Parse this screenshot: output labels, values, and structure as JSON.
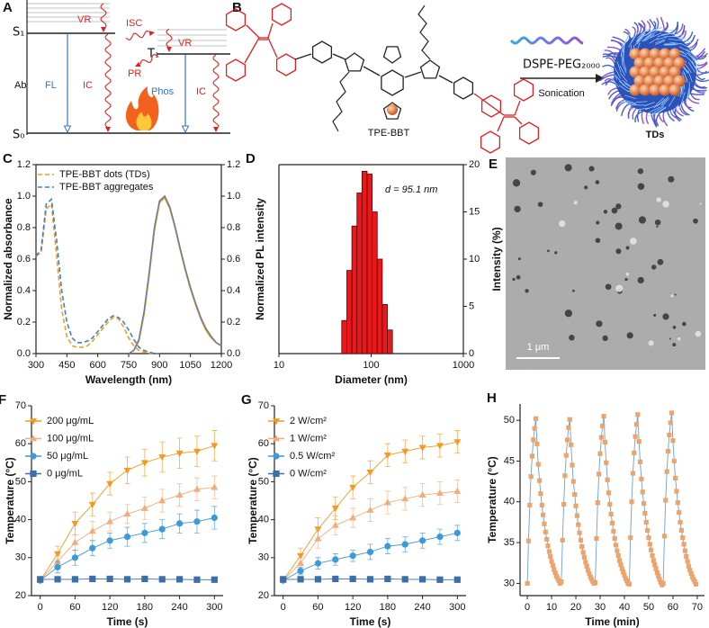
{
  "diagram_a": {
    "panel": "A",
    "s1": "S₁",
    "t1": "T₁",
    "s0": "S₀",
    "vr1": "VR",
    "isc": "ISC",
    "vr2": "VR",
    "pr": "PR",
    "ab": "Ab",
    "fl": "FL",
    "ic1": "IC",
    "phos": "Phos",
    "ic2": "IC"
  },
  "scheme_b": {
    "panel": "B",
    "molecule": "TPE-BBT",
    "reagent": "DSPE-PEG₂₀₀₀",
    "step": "Sonication",
    "product": "TDs"
  },
  "image_e": {
    "panel": "E",
    "scale_bar": "1 μm"
  },
  "chart_data": [
    {
      "panel": "C",
      "type": "line",
      "xlabel": "Wavelength (nm)",
      "ylabel": "Normalized absorbance",
      "y2label": "Normalized PL intensity",
      "x": [
        300,
        325,
        350,
        375,
        400,
        425,
        450,
        475,
        500,
        525,
        550,
        575,
        600,
        625,
        650,
        675,
        700,
        725,
        750,
        775,
        800,
        825,
        850,
        875,
        900,
        925,
        950,
        975,
        1000,
        1025,
        1050,
        1075,
        1100,
        1125,
        1150,
        1175,
        1200
      ],
      "series": [
        {
          "name": "TPE-BBT dots (TDs)",
          "color": "#f39a22",
          "linestyle": "dashed",
          "values": [
            0.62,
            0.64,
            0.92,
            0.95,
            0.62,
            0.28,
            0.11,
            0.05,
            0.04,
            0.04,
            0.05,
            0.08,
            0.12,
            0.16,
            0.2,
            0.23,
            0.22,
            0.17,
            0.1,
            0.05,
            0.02,
            0.01,
            0,
            0,
            0,
            null,
            null,
            null,
            null,
            null,
            null,
            null,
            null,
            null,
            null,
            null,
            null
          ]
        },
        {
          "name": "TPE-BBT aggregates",
          "color": "#3f80c4",
          "linestyle": "dashed",
          "values": [
            0.62,
            0.66,
            0.95,
            0.98,
            0.72,
            0.4,
            0.2,
            0.1,
            0.07,
            0.07,
            0.08,
            0.1,
            0.14,
            0.18,
            0.22,
            0.24,
            0.23,
            0.2,
            0.15,
            0.09,
            0.04,
            0.02,
            0.01,
            0,
            0,
            null,
            null,
            null,
            null,
            null,
            null,
            null,
            null,
            null,
            null,
            null,
            null
          ]
        },
        {
          "color": "#f39a22",
          "linestyle": "solid",
          "axis": "y2",
          "values": [
            null,
            null,
            null,
            null,
            null,
            null,
            null,
            null,
            null,
            null,
            null,
            null,
            null,
            null,
            null,
            null,
            null,
            null,
            0,
            0.02,
            0.08,
            0.25,
            0.5,
            0.78,
            0.96,
            0.99,
            0.92,
            0.8,
            0.66,
            0.53,
            0.41,
            0.31,
            0.22,
            0.15,
            0.1,
            0.07,
            0.05
          ]
        },
        {
          "color": "#6f7f8f",
          "linestyle": "solid",
          "axis": "y2",
          "values": [
            null,
            null,
            null,
            null,
            null,
            null,
            null,
            null,
            null,
            null,
            null,
            null,
            null,
            null,
            null,
            null,
            null,
            null,
            0,
            0.02,
            0.09,
            0.27,
            0.52,
            0.8,
            0.97,
            1.0,
            0.93,
            0.81,
            0.67,
            0.54,
            0.42,
            0.32,
            0.23,
            0.16,
            0.11,
            0.07,
            0.05
          ]
        }
      ],
      "xlim": [
        300,
        1200
      ],
      "xticks": [
        300,
        450,
        600,
        750,
        900,
        1050,
        1200
      ],
      "ylim": [
        0,
        1.2
      ],
      "yticks": [
        {
          "value": 0,
          "label": "0.0"
        },
        0.2,
        0.4,
        0.6,
        0.8,
        {
          "value": 1,
          "label": "1.0"
        },
        1.2
      ],
      "y2lim": [
        0,
        1.2
      ],
      "y2ticks": [
        {
          "value": 0,
          "label": "0.0"
        },
        0.2,
        0.4,
        0.6,
        0.8,
        {
          "value": 1,
          "label": "1.0"
        },
        1.2
      ],
      "frame": "box",
      "legend": "upper left"
    },
    {
      "panel": "D",
      "type": "histogram",
      "xlabel": "Diameter (nm)",
      "y2label": "Intensity (%)",
      "annotation": "d = 95.1 nm",
      "bins": [
        48,
        54.5,
        61.8,
        70.2,
        79.6,
        90.4,
        102.6,
        116.4,
        132.1,
        149.9,
        170.2
      ],
      "values": [
        3.5,
        8.8,
        13.5,
        17.0,
        19.3,
        19.0,
        15.0,
        10.0,
        5.2,
        2.5
      ],
      "color": "#e8191c",
      "xlim": [
        10,
        1000
      ],
      "xticks": [
        10,
        100,
        1000
      ],
      "xlog": true,
      "y2lim": [
        0,
        20
      ],
      "y2ticks": [
        0,
        5,
        10,
        15,
        20
      ],
      "frame": "box"
    },
    {
      "panel": "F",
      "type": "line",
      "xlabel": "Time (s)",
      "ylabel": "Temperature (°C)",
      "x": [
        0,
        30,
        60,
        90,
        120,
        150,
        180,
        210,
        240,
        270,
        300
      ],
      "series": [
        {
          "name": "200 μg/mL",
          "color": "#f39a22",
          "marker": "triangle-down",
          "values": [
            24,
            31,
            39,
            44,
            49.5,
            53,
            55,
            56.5,
            57.5,
            58,
            59.5
          ],
          "errors": [
            0.5,
            2,
            3,
            3,
            3,
            3.5,
            3.5,
            4,
            4,
            4,
            4
          ]
        },
        {
          "name": "100 μg/mL",
          "color": "#f0ad7d",
          "marker": "triangle-up",
          "values": [
            24,
            29,
            34,
            37,
            39.5,
            41.5,
            43,
            45,
            46.5,
            48,
            48.5
          ],
          "errors": [
            0.5,
            1.5,
            2,
            2.5,
            2.5,
            2.5,
            3,
            3,
            3,
            3,
            3
          ]
        },
        {
          "name": "50 μg/mL",
          "color": "#3d9ad8",
          "marker": "circle",
          "values": [
            24,
            27.5,
            30,
            32.5,
            34.5,
            35.5,
            36.5,
            37.5,
            39,
            39.5,
            40.5
          ],
          "errors": [
            0.5,
            1.5,
            2,
            2,
            2,
            2.5,
            2.5,
            2.5,
            2.5,
            3,
            3
          ]
        },
        {
          "name": "0 μg/mL",
          "color": "#3a6fa8",
          "marker": "square",
          "values": [
            24.3,
            24.3,
            24.3,
            24.4,
            24.4,
            24.3,
            24.4,
            24.3,
            24.3,
            24.2,
            24.2
          ],
          "errors": [
            0.3,
            0.3,
            0.3,
            0.3,
            0.3,
            0.3,
            0.3,
            0.3,
            0.3,
            0.3,
            0.3
          ]
        }
      ],
      "xlim": [
        -15,
        315
      ],
      "xticks": [
        0,
        60,
        120,
        180,
        240,
        300
      ],
      "ylim": [
        20,
        70
      ],
      "yticks": [
        20,
        30,
        40,
        50,
        60,
        70
      ],
      "frame": "axes",
      "legend": "upper left"
    },
    {
      "panel": "G",
      "type": "line",
      "xlabel": "Time (s)",
      "ylabel": "Temperature (°C)",
      "x": [
        0,
        30,
        60,
        90,
        120,
        150,
        180,
        210,
        240,
        270,
        300
      ],
      "series": [
        {
          "name": "2 W/cm²",
          "color": "#f39a22",
          "marker": "triangle-down",
          "values": [
            24,
            30.5,
            37.5,
            43,
            48.5,
            52.5,
            57,
            58,
            59,
            59.5,
            60.5
          ],
          "errors": [
            0.5,
            2,
            3,
            3,
            3,
            3,
            3,
            3,
            3,
            3,
            3
          ]
        },
        {
          "name": "1 W/cm²",
          "color": "#f0ad7d",
          "marker": "triangle-up",
          "values": [
            24,
            28.5,
            35,
            38.5,
            40.5,
            42.5,
            44.5,
            45.5,
            46.5,
            47,
            47.5
          ],
          "errors": [
            0.5,
            1.5,
            2.5,
            2.5,
            2.5,
            3,
            3,
            3,
            3,
            3,
            3
          ]
        },
        {
          "name": "0.5 W/cm²",
          "color": "#3d9ad8",
          "marker": "circle",
          "values": [
            24,
            26.5,
            28.5,
            29.5,
            30.5,
            31.5,
            33,
            33.5,
            34.5,
            35.5,
            36.5
          ],
          "errors": [
            0.5,
            1,
            1.5,
            1.5,
            1.5,
            2,
            2,
            2,
            2,
            2,
            2
          ]
        },
        {
          "name": "0 W/cm²",
          "color": "#3a6fa8",
          "marker": "square",
          "values": [
            24.3,
            24.3,
            24.3,
            24.4,
            24.4,
            24.3,
            24.4,
            24.3,
            24.3,
            24.2,
            24.2
          ],
          "errors": [
            0.3,
            0.3,
            0.3,
            0.3,
            0.3,
            0.3,
            0.3,
            0.3,
            0.3,
            0.3,
            0.3
          ]
        }
      ],
      "xlim": [
        -15,
        315
      ],
      "xticks": [
        0,
        60,
        120,
        180,
        240,
        300
      ],
      "ylim": [
        20,
        70
      ],
      "yticks": [
        20,
        30,
        40,
        50,
        60,
        70
      ],
      "frame": "axes",
      "legend": "upper left"
    },
    {
      "panel": "H",
      "type": "line",
      "xlabel": "Time (min)",
      "ylabel": "Temperature (°C)",
      "x": [
        0,
        0.5,
        1,
        1.5,
        2,
        2.5,
        3,
        3.5,
        4,
        4.5,
        5,
        5.5,
        6,
        6.5,
        7,
        7.5,
        8,
        8.5,
        9,
        9.5,
        10,
        10.5,
        11,
        11.5,
        12,
        12.5,
        13,
        13.5,
        14,
        14.5,
        15,
        15.5,
        16,
        16.5,
        17,
        17.5,
        18,
        18.5,
        19,
        19.5,
        20,
        20.5,
        21,
        21.5,
        22,
        22.5,
        23,
        23.5,
        24,
        24.5,
        25,
        25.5,
        26,
        26.5,
        27,
        27.5,
        28,
        28.5,
        29,
        29.5,
        30,
        30.5,
        31,
        31.5,
        32,
        32.5,
        33,
        33.5,
        34,
        34.5,
        35,
        35.5,
        36,
        36.5,
        37,
        37.5,
        38,
        38.5,
        39,
        39.5,
        40,
        40.5,
        41,
        41.5,
        42,
        42.5,
        43,
        43.5,
        44,
        44.5,
        45,
        45.5,
        46,
        46.5,
        47,
        47.5,
        48,
        48.5,
        49,
        49.5,
        50,
        50.5,
        51,
        51.5,
        52,
        52.5,
        53,
        53.5,
        54,
        54.5,
        55,
        55.5,
        56,
        56.5,
        57,
        57.5,
        58,
        58.5,
        59,
        59.5,
        60,
        60.5,
        61,
        61.5,
        62,
        62.5,
        63,
        63.5,
        64,
        64.5,
        65,
        65.5,
        66,
        66.5,
        67,
        67.5,
        68,
        68.5,
        69,
        69.5
      ],
      "series": [
        {
          "color": "#eba56c",
          "line_color": "#6c9fd8",
          "marker": "square",
          "values": [
            30.0,
            35.2,
            39.6,
            43.1,
            45.6,
            47.6,
            49.0,
            50.2,
            47.1,
            44.6,
            42.6,
            41.0,
            39.6,
            38.4,
            37.3,
            36.3,
            35.4,
            34.6,
            33.9,
            33.3,
            32.7,
            32.2,
            31.7,
            31.3,
            30.9,
            30.6,
            30.3,
            30.0,
            30.2,
            35.3,
            39.7,
            43.2,
            45.7,
            47.6,
            49.1,
            50.1,
            47.0,
            44.5,
            42.5,
            40.9,
            39.5,
            38.3,
            37.2,
            36.2,
            35.3,
            34.5,
            33.8,
            33.2,
            32.6,
            32.1,
            31.6,
            31.2,
            30.8,
            30.5,
            30.2,
            30.0,
            30.1,
            35.5,
            39.9,
            43.4,
            45.9,
            47.9,
            49.3,
            50.5,
            47.3,
            44.8,
            42.7,
            41.1,
            39.7,
            38.5,
            37.4,
            36.4,
            35.5,
            34.7,
            34.0,
            33.4,
            32.8,
            32.3,
            31.8,
            31.4,
            31.0,
            30.6,
            30.3,
            30.0,
            29.9,
            35.6,
            40.0,
            43.5,
            46.0,
            48.0,
            49.5,
            50.7,
            47.4,
            44.9,
            42.8,
            41.2,
            39.8,
            38.6,
            37.5,
            36.5,
            35.6,
            34.8,
            34.1,
            33.4,
            32.8,
            32.3,
            31.8,
            31.3,
            30.9,
            30.5,
            30.1,
            29.8,
            30.0,
            35.8,
            40.2,
            43.7,
            46.2,
            48.2,
            49.7,
            50.9,
            47.5,
            45.0,
            42.9,
            41.3,
            39.9,
            38.7,
            37.5,
            36.5,
            35.6,
            34.8,
            34.0,
            33.3,
            32.7,
            32.1,
            31.6,
            31.2,
            30.8,
            30.5,
            30.2,
            29.9
          ]
        }
      ],
      "xlim": [
        -3,
        73
      ],
      "xticks": [
        0,
        10,
        20,
        30,
        40,
        50,
        60,
        70
      ],
      "ylim": [
        28.5,
        52
      ],
      "yticks": [
        30,
        35,
        40,
        45,
        50
      ],
      "frame": "axes"
    }
  ]
}
